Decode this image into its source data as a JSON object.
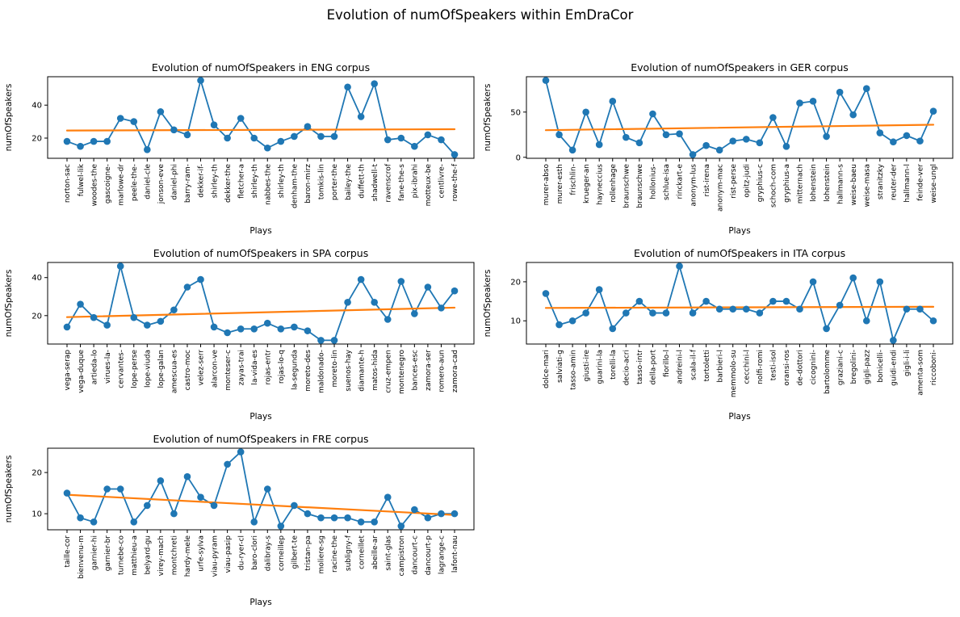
{
  "figure": {
    "title": "Evolution of numOfSpeakers within EmDraCor",
    "background": "#ffffff"
  },
  "colors": {
    "line": "#1f77b4",
    "trend": "#ff7f0e",
    "axis": "#000000",
    "text": "#000000"
  },
  "chart_data": [
    {
      "type": "line",
      "corpus": "ENG",
      "title": "Evolution of numOfSpeakers in ENG corpus",
      "xlabel": "Plays",
      "ylabel": "numOfSpeakers",
      "grid": false,
      "legend": "none",
      "yticks": [
        20,
        40
      ],
      "ylim": [
        7.75,
        57.25
      ],
      "categories": [
        "norton-sac",
        "fulwel-lik",
        "woodes-the",
        "gascoigne-",
        "marlowe-dr",
        "peele-the-",
        "daniel-cle",
        "jonson-eve",
        "daniel-phi",
        "barry-ram-",
        "dekker-if-",
        "shirley-th",
        "dekker-the",
        "fletcher-a",
        "shirley-th",
        "nabbes-the",
        "shirley-th",
        "denham-the",
        "baron-mirz",
        "tomkis-lin",
        "porter-the",
        "bailey-the",
        "duffett-th",
        "shadwell-t",
        "ravenscrof",
        "fane-the-s",
        "pix-ibrahi",
        "motteux-be",
        "centlivre-",
        "rowe-the-f"
      ],
      "values": [
        18,
        15,
        18,
        18,
        32,
        30,
        13,
        36,
        25,
        22,
        55,
        28,
        20,
        32,
        20,
        14,
        18,
        21,
        27,
        21,
        21,
        51,
        33,
        53,
        19,
        20,
        15,
        22,
        19,
        10
      ],
      "trend_line": {
        "start": 24.6,
        "end": 25.4
      }
    },
    {
      "type": "line",
      "corpus": "GER",
      "title": "Evolution of numOfSpeakers in GER corpus",
      "xlabel": "Plays",
      "ylabel": "numOfSpeakers",
      "grid": false,
      "legend": "none",
      "yticks": [
        0,
        50
      ],
      "ylim": [
        -1.1,
        89.1
      ],
      "categories": [
        "murer-abso",
        "murer-esth",
        "frischlin-",
        "krueger-an",
        "hayneccius",
        "rollenhage",
        "braunschwe",
        "braunschwe",
        "hollonius-",
        "schlue-isa",
        "rinckart-e",
        "anonym-lus",
        "rist-irena",
        "anonym-mac",
        "rist-perse",
        "opitz-judi",
        "gryphius-c",
        "schoch-com",
        "gryphius-a",
        "mitternach",
        "lohenstein",
        "lohenstein",
        "hallmann-s",
        "weise-baeu",
        "weise-masa",
        "stranitzky",
        "reuter-der",
        "hallmann-l",
        "feinde-ver",
        "weise-ungl"
      ],
      "values": [
        85,
        25,
        8,
        50,
        14,
        62,
        22,
        16,
        48,
        25,
        26,
        3,
        13,
        8,
        18,
        20,
        16,
        44,
        12,
        60,
        62,
        23,
        72,
        47,
        76,
        27,
        17,
        24,
        18,
        51
      ],
      "trend_line": {
        "start": 30.0,
        "end": 36.0
      }
    },
    {
      "type": "line",
      "corpus": "SPA",
      "title": "Evolution of numOfSpeakers in SPA corpus",
      "xlabel": "Plays",
      "ylabel": "numOfSpeakers",
      "grid": false,
      "legend": "none",
      "yticks": [
        20,
        40
      ],
      "ylim": [
        5.05,
        47.95
      ],
      "categories": [
        "vega-serap",
        "vega-duque",
        "artieda-lo",
        "virues-la-",
        "cervantes-",
        "lope-perse",
        "lope-viuda",
        "lope-galan",
        "amescua-es",
        "castro-moc",
        "velez-serr",
        "alarcon-ve",
        "monteser-c",
        "zayas-trai",
        "la-vida-es",
        "rojas-entr",
        "rojas-lo-q",
        "la-segunda",
        "moreto-des",
        "maldonado-",
        "moreto-lin",
        "suenos-hay",
        "diamante-h",
        "matos-hida",
        "cruz-empen",
        "montenegro",
        "bances-esc",
        "zamora-ser",
        "romero-aun",
        "zamora-cad"
      ],
      "values": [
        14,
        26,
        19,
        15,
        46,
        19,
        15,
        17,
        23,
        35,
        39,
        14,
        11,
        13,
        13,
        16,
        13,
        14,
        12,
        7,
        7,
        27,
        39,
        27,
        18,
        38,
        21,
        35,
        24,
        33
      ],
      "trend_line": {
        "start": 19.2,
        "end": 24.2
      }
    },
    {
      "type": "line",
      "corpus": "ITA",
      "title": "Evolution of numOfSpeakers in ITA corpus",
      "xlabel": "Plays",
      "ylabel": "numOfSpeakers",
      "grid": false,
      "legend": "none",
      "yticks": [
        10,
        20
      ],
      "ylim": [
        4.05,
        24.95
      ],
      "categories": [
        "dolce-mari",
        "salviati-g",
        "tasso-amin",
        "giusti-ire",
        "guarini-la",
        "torelli-la",
        "decio-acri",
        "tasso-intr",
        "della-port",
        "fiorillo-l",
        "andreini-l",
        "scala-il-f",
        "tortoletti",
        "barbieri-l",
        "memmolo-su",
        "cecchini-l",
        "nolfi-romi",
        "testi-isol",
        "oransi-ros",
        "de-dottori",
        "cicognini-",
        "bartolomme",
        "graziani-c",
        "bregolini-",
        "gigli-pazz",
        "bonicelli-",
        "guidi-endi",
        "gigli-i-li",
        "amenta-som",
        "riccoboni-"
      ],
      "values": [
        17,
        9,
        10,
        12,
        18,
        8,
        12,
        15,
        12,
        12,
        24,
        12,
        15,
        13,
        13,
        13,
        12,
        15,
        15,
        13,
        20,
        8,
        14,
        21,
        10,
        20,
        5,
        13,
        13,
        10
      ],
      "trend_line": {
        "start": 13.3,
        "end": 13.6
      }
    },
    {
      "type": "line",
      "corpus": "FRE",
      "title": "Evolution of numOfSpeakers in FRE corpus",
      "xlabel": "Plays",
      "ylabel": "numOfSpeakers",
      "grid": false,
      "legend": "none",
      "yticks": [
        10,
        20
      ],
      "ylim": [
        6.1,
        25.9
      ],
      "categories": [
        "taille-cor",
        "bienvenu-m",
        "garnier-hi",
        "garnier-br",
        "turnebe-co",
        "matthieu-a",
        "belyard-gu",
        "virey-mach",
        "montchreti",
        "hardy-mele",
        "urfe-sylva",
        "viau-pyram",
        "viau-pasip",
        "du-ryer-cl",
        "baro-clori",
        "dalibray-s",
        "corneillep",
        "gilbert-te",
        "tristan-pa",
        "moliere-sg",
        "racine-the",
        "subligny-f",
        "corneillet",
        "abeille-ar",
        "saint-glas",
        "campistron",
        "dancourt-c",
        "dancourt-p",
        "lagrange-c",
        "lafont-nau"
      ],
      "values": [
        15,
        9,
        8,
        16,
        16,
        8,
        12,
        18,
        10,
        19,
        14,
        12,
        22,
        25,
        8,
        16,
        7,
        12,
        10,
        9,
        9,
        9,
        8,
        8,
        14,
        7,
        11,
        9,
        10,
        10
      ],
      "trend_line": {
        "start": 14.6,
        "end": 9.7
      }
    }
  ]
}
